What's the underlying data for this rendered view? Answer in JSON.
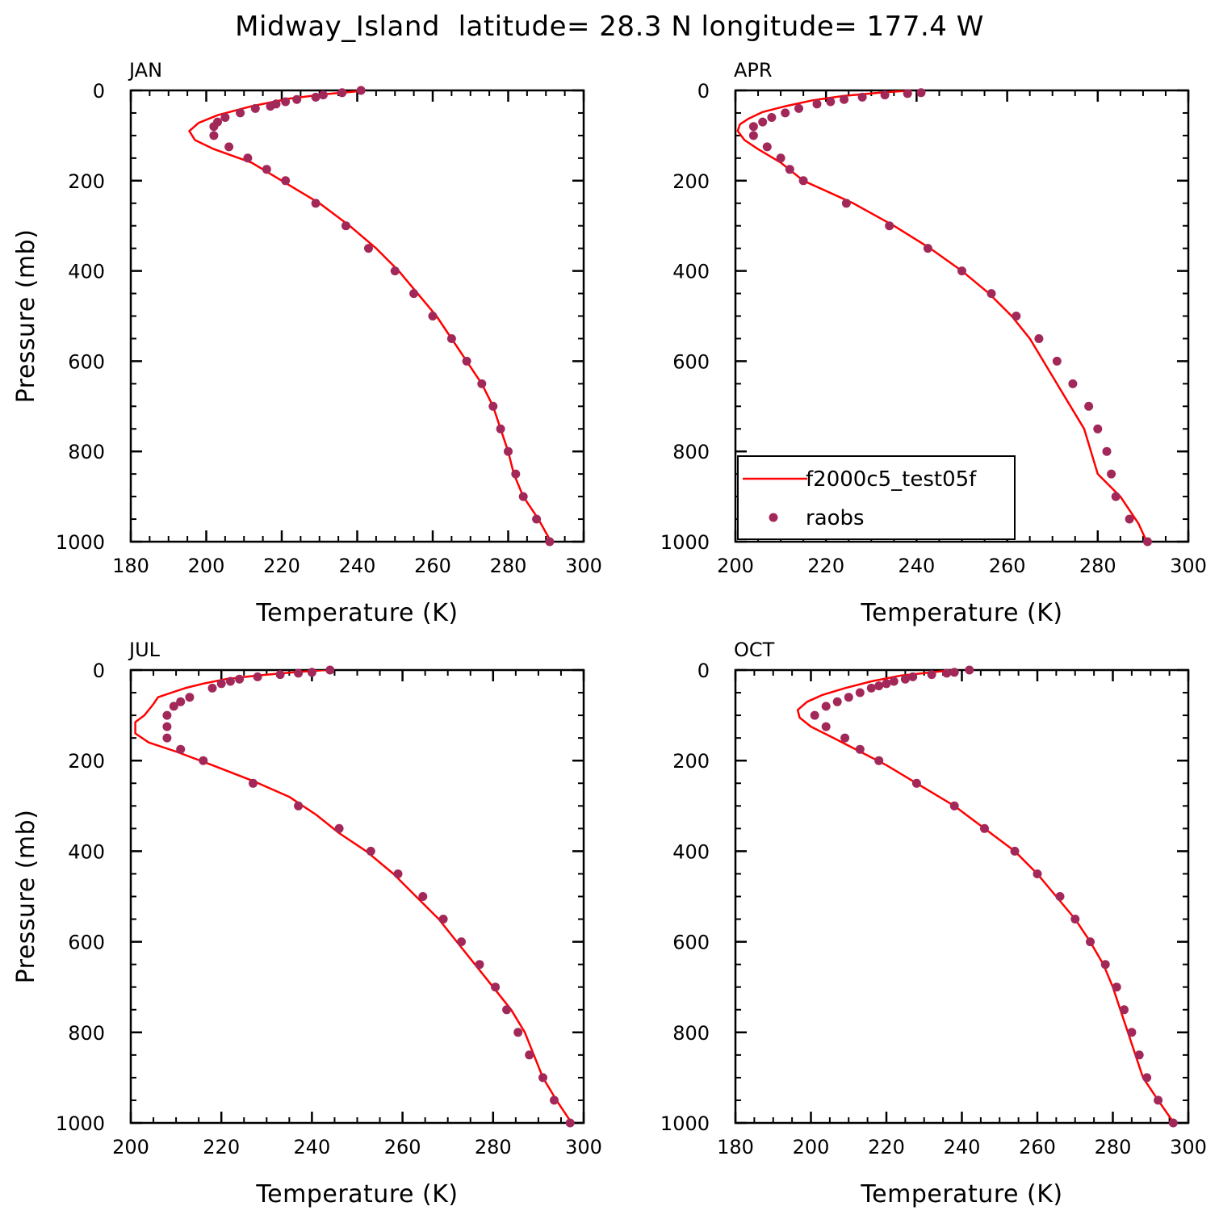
{
  "figure": {
    "title": "Midway_Island  latitude= 28.3 N longitude= 177.4 W",
    "colors": {
      "model_line": "#ff0000",
      "obs_marker": "#a3285a",
      "axis": "#000000"
    }
  },
  "chart_data": [
    {
      "type": "line",
      "panel": "JAN",
      "xlabel": "Temperature (K)",
      "ylabel": "Pressure (mb)",
      "xlim": [
        180,
        300
      ],
      "ylim": [
        1000,
        0
      ],
      "y_axis": "inverted",
      "x_ticks": [
        "180",
        "200",
        "220",
        "240",
        "260",
        "280",
        "300"
      ],
      "y_ticks": [
        "0",
        "200",
        "400",
        "600",
        "800",
        "1000"
      ],
      "series": [
        {
          "name": "f2000c5_test05f",
          "style": "line",
          "points": [
            [
              240,
              2
            ],
            [
              232,
              8
            ],
            [
              222,
              18
            ],
            [
              212,
              35
            ],
            [
              203,
              55
            ],
            [
              198,
              72
            ],
            [
              195.5,
              90
            ],
            [
              197,
              110
            ],
            [
              202,
              130
            ],
            [
              212,
              160
            ],
            [
              220,
              200
            ],
            [
              230,
              250
            ],
            [
              238,
              300
            ],
            [
              245,
              350
            ],
            [
              251,
              400
            ],
            [
              256,
              450
            ],
            [
              261,
              500
            ],
            [
              265,
              550
            ],
            [
              269,
              600
            ],
            [
              273,
              650
            ],
            [
              276,
              700
            ],
            [
              278,
              750
            ],
            [
              280,
              800
            ],
            [
              281.5,
              850
            ],
            [
              284,
              900
            ],
            [
              288,
              950
            ],
            [
              292,
              1010
            ]
          ]
        },
        {
          "name": "raobs",
          "style": "marker",
          "points": [
            [
              241,
              0
            ],
            [
              236,
              5
            ],
            [
              231,
              10
            ],
            [
              229,
              15
            ],
            [
              224,
              20
            ],
            [
              221,
              25
            ],
            [
              218.5,
              30
            ],
            [
              217,
              35
            ],
            [
              213,
              40
            ],
            [
              209,
              50
            ],
            [
              205,
              60
            ],
            [
              203,
              70
            ],
            [
              202,
              80
            ],
            [
              202,
              100
            ],
            [
              206,
              125
            ],
            [
              211,
              150
            ],
            [
              216,
              175
            ],
            [
              221,
              200
            ],
            [
              229,
              250
            ],
            [
              237,
              300
            ],
            [
              243,
              350
            ],
            [
              250,
              400
            ],
            [
              255,
              450
            ],
            [
              260,
              500
            ],
            [
              265,
              550
            ],
            [
              269,
              600
            ],
            [
              273,
              650
            ],
            [
              276,
              700
            ],
            [
              278,
              750
            ],
            [
              280,
              800
            ],
            [
              282,
              850
            ],
            [
              284,
              900
            ],
            [
              287.5,
              950
            ],
            [
              291,
              1000
            ]
          ]
        }
      ]
    },
    {
      "type": "line",
      "panel": "APR",
      "xlabel": "Temperature (K)",
      "ylabel": "",
      "xlim": [
        200,
        300
      ],
      "ylim": [
        1000,
        0
      ],
      "y_axis": "inverted",
      "x_ticks": [
        "200",
        "220",
        "240",
        "260",
        "280",
        "300"
      ],
      "y_ticks": [
        "0",
        "200",
        "400",
        "600",
        "800",
        "1000"
      ],
      "legend": {
        "position": "bottom-left",
        "entries": [
          "f2000c5_test05f",
          "raobs"
        ]
      },
      "series": [
        {
          "name": "f2000c5_test05f",
          "style": "line",
          "points": [
            [
              239,
              0
            ],
            [
              232,
              5
            ],
            [
              224,
              12
            ],
            [
              217,
              22
            ],
            [
              211,
              35
            ],
            [
              206,
              48
            ],
            [
              203,
              62
            ],
            [
              201,
              75
            ],
            [
              200.5,
              90
            ],
            [
              202,
              110
            ],
            [
              205,
              130
            ],
            [
              210,
              160
            ],
            [
              215,
              200
            ],
            [
              226,
              250
            ],
            [
              235,
              300
            ],
            [
              243,
              350
            ],
            [
              250,
              400
            ],
            [
              256,
              450
            ],
            [
              261,
              500
            ],
            [
              265,
              550
            ],
            [
              268,
              600
            ],
            [
              271,
              650
            ],
            [
              274,
              700
            ],
            [
              277,
              750
            ],
            [
              278.5,
              800
            ],
            [
              280,
              850
            ],
            [
              285,
              900
            ],
            [
              289,
              960
            ],
            [
              291.5,
              1015
            ]
          ]
        },
        {
          "name": "raobs",
          "style": "marker",
          "points": [
            [
              241,
              5
            ],
            [
              238,
              7
            ],
            [
              233,
              10
            ],
            [
              228,
              15
            ],
            [
              224,
              20
            ],
            [
              221,
              25
            ],
            [
              218,
              30
            ],
            [
              214,
              40
            ],
            [
              211,
              50
            ],
            [
              208,
              60
            ],
            [
              206,
              70
            ],
            [
              204,
              80
            ],
            [
              204,
              100
            ],
            [
              207,
              125
            ],
            [
              210,
              150
            ],
            [
              212,
              175
            ],
            [
              215,
              200
            ],
            [
              224.5,
              250
            ],
            [
              234,
              300
            ],
            [
              242.5,
              350
            ],
            [
              250,
              400
            ],
            [
              256.5,
              450
            ],
            [
              262,
              500
            ],
            [
              267,
              550
            ],
            [
              271,
              600
            ],
            [
              274.5,
              650
            ],
            [
              278,
              700
            ],
            [
              280,
              750
            ],
            [
              282,
              800
            ],
            [
              283,
              850
            ],
            [
              284,
              900
            ],
            [
              287,
              950
            ],
            [
              291,
              1000
            ]
          ]
        }
      ]
    },
    {
      "type": "line",
      "panel": "JUL",
      "xlabel": "Temperature (K)",
      "ylabel": "Pressure (mb)",
      "xlim": [
        200,
        300
      ],
      "ylim": [
        1000,
        0
      ],
      "y_axis": "inverted",
      "x_ticks": [
        "200",
        "220",
        "240",
        "260",
        "280",
        "300"
      ],
      "y_ticks": [
        "0",
        "200",
        "400",
        "600",
        "800",
        "1000"
      ],
      "series": [
        {
          "name": "f2000c5_test05f",
          "style": "line",
          "points": [
            [
              243,
              0
            ],
            [
              236,
              5
            ],
            [
              228,
              12
            ],
            [
              221,
              20
            ],
            [
              216,
              30
            ],
            [
              212,
              40
            ],
            [
              209,
              50
            ],
            [
              206,
              60
            ],
            [
              205,
              75
            ],
            [
              203,
              100
            ],
            [
              201,
              115
            ],
            [
              201,
              140
            ],
            [
              204,
              160
            ],
            [
              210,
              180
            ],
            [
              218,
              210
            ],
            [
              227,
              245
            ],
            [
              235,
              280
            ],
            [
              241,
              320
            ],
            [
              246,
              360
            ],
            [
              252,
              400
            ],
            [
              258,
              450
            ],
            [
              263,
              500
            ],
            [
              268,
              550
            ],
            [
              272,
              600
            ],
            [
              276,
              650
            ],
            [
              280,
              700
            ],
            [
              284,
              750
            ],
            [
              287,
              800
            ],
            [
              289,
              850
            ],
            [
              291,
              900
            ],
            [
              294,
              950
            ],
            [
              298,
              1010
            ]
          ]
        },
        {
          "name": "raobs",
          "style": "marker",
          "points": [
            [
              244,
              0
            ],
            [
              240,
              5
            ],
            [
              237,
              7
            ],
            [
              233,
              10
            ],
            [
              228,
              15
            ],
            [
              224,
              20
            ],
            [
              222,
              25
            ],
            [
              220,
              30
            ],
            [
              218,
              40
            ],
            [
              213,
              60
            ],
            [
              211,
              70
            ],
            [
              209.5,
              80
            ],
            [
              208,
              100
            ],
            [
              208,
              125
            ],
            [
              208,
              150
            ],
            [
              211,
              175
            ],
            [
              216,
              200
            ],
            [
              227,
              250
            ],
            [
              237,
              300
            ],
            [
              246,
              350
            ],
            [
              253,
              400
            ],
            [
              259,
              450
            ],
            [
              264.5,
              500
            ],
            [
              269,
              550
            ],
            [
              273,
              600
            ],
            [
              277,
              650
            ],
            [
              280.5,
              700
            ],
            [
              283,
              750
            ],
            [
              285.5,
              800
            ],
            [
              288,
              850
            ],
            [
              291,
              900
            ],
            [
              293.5,
              950
            ],
            [
              297,
              1000
            ]
          ]
        }
      ]
    },
    {
      "type": "line",
      "panel": "OCT",
      "xlabel": "Temperature (K)",
      "ylabel": "",
      "xlim": [
        180,
        300
      ],
      "ylim": [
        1000,
        0
      ],
      "y_axis": "inverted",
      "x_ticks": [
        "180",
        "200",
        "220",
        "240",
        "260",
        "280",
        "300"
      ],
      "y_ticks": [
        "0",
        "200",
        "400",
        "600",
        "800",
        "1000"
      ],
      "series": [
        {
          "name": "f2000c5_test05f",
          "style": "line",
          "points": [
            [
              238,
              0
            ],
            [
              232,
              5
            ],
            [
              224,
              12
            ],
            [
              216,
              25
            ],
            [
              209,
              40
            ],
            [
              203,
              55
            ],
            [
              199,
              70
            ],
            [
              196.5,
              88
            ],
            [
              197,
              105
            ],
            [
              200,
              125
            ],
            [
              206,
              150
            ],
            [
              213,
              180
            ],
            [
              220,
              210
            ],
            [
              228,
              250
            ],
            [
              238,
              300
            ],
            [
              246,
              350
            ],
            [
              254,
              400
            ],
            [
              260,
              450
            ],
            [
              265,
              500
            ],
            [
              270,
              550
            ],
            [
              274,
              600
            ],
            [
              277.5,
              650
            ],
            [
              280,
              700
            ],
            [
              282,
              750
            ],
            [
              284,
              800
            ],
            [
              286,
              850
            ],
            [
              288,
              900
            ],
            [
              292,
              950
            ],
            [
              297,
              1010
            ]
          ]
        },
        {
          "name": "raobs",
          "style": "marker",
          "points": [
            [
              242,
              0
            ],
            [
              238,
              5
            ],
            [
              236,
              7
            ],
            [
              232,
              10
            ],
            [
              227,
              15
            ],
            [
              225,
              20
            ],
            [
              222,
              25
            ],
            [
              220,
              30
            ],
            [
              218,
              35
            ],
            [
              216,
              40
            ],
            [
              213,
              50
            ],
            [
              210,
              60
            ],
            [
              207,
              70
            ],
            [
              204,
              80
            ],
            [
              201,
              100
            ],
            [
              204,
              125
            ],
            [
              209,
              150
            ],
            [
              213,
              175
            ],
            [
              218,
              200
            ],
            [
              228,
              250
            ],
            [
              238,
              300
            ],
            [
              246,
              350
            ],
            [
              254,
              400
            ],
            [
              260,
              450
            ],
            [
              266,
              500
            ],
            [
              270,
              550
            ],
            [
              274,
              600
            ],
            [
              278,
              650
            ],
            [
              281,
              700
            ],
            [
              283,
              750
            ],
            [
              285,
              800
            ],
            [
              287,
              850
            ],
            [
              289,
              900
            ],
            [
              292,
              950
            ],
            [
              296,
              1000
            ]
          ]
        }
      ]
    }
  ]
}
